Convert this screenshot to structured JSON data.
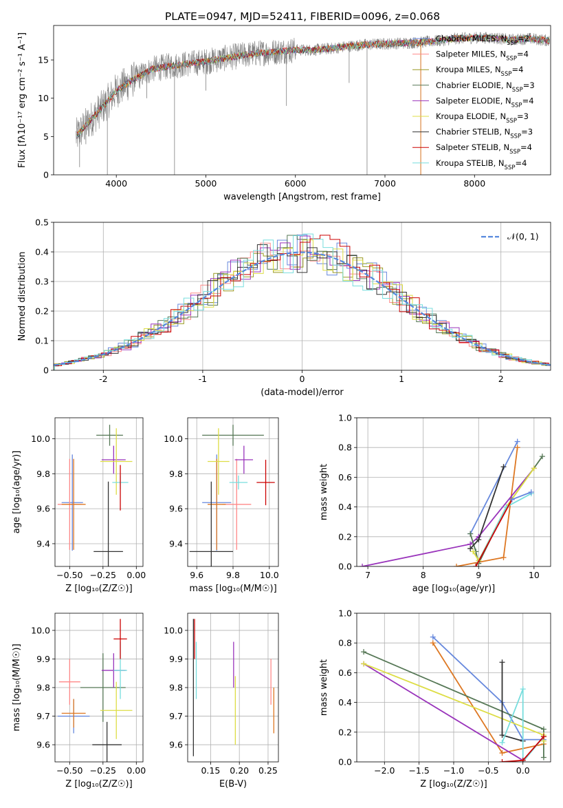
{
  "colors": {
    "C1": "#6688dd",
    "C2": "#ff8888",
    "C3": "#999922",
    "C4": "#557755",
    "C5": "#9933bb",
    "C6": "#dddd44",
    "C7": "#333333",
    "C8": "#cc0000",
    "C9": "#77dddd",
    "orange": "#dd7722",
    "spectrum": "#7f7f7f",
    "teal": "#66cccc"
  },
  "chart_data": [
    {
      "id": "p1",
      "type": "line",
      "title": "PLATE=0947, MJD=52411, FIBERID=0096, z=0.068",
      "xlabel": "wavelength [Angstrom, rest frame]",
      "ylabel": "Flux [fλ10⁻¹⁷ erg cm⁻² s⁻¹ A⁻¹]",
      "xlim": [
        3300,
        8850
      ],
      "ylim": [
        0,
        19.5
      ],
      "xticks": [
        4000,
        5000,
        6000,
        7000,
        8000
      ],
      "yticks": [
        0,
        5,
        10,
        15
      ],
      "grid": false,
      "legend_position": "right",
      "legend": [
        {
          "label": "Chabrier MILES, N",
          "sub": "SSP",
          "suffix": "=2",
          "color": "#6688dd"
        },
        {
          "label": "Salpeter MILES, N",
          "sub": "SSP",
          "suffix": "=4",
          "color": "#ff8888"
        },
        {
          "label": "Kroupa MILES, N",
          "sub": "SSP",
          "suffix": "=4",
          "color": "#999922"
        },
        {
          "label": "Chabrier ELODIE, N",
          "sub": "SSP",
          "suffix": "=3",
          "color": "#557755"
        },
        {
          "label": "Salpeter ELODIE, N",
          "sub": "SSP",
          "suffix": "=4",
          "color": "#9933bb"
        },
        {
          "label": "Kroupa ELODIE, N",
          "sub": "SSP",
          "suffix": "=3",
          "color": "#dddd44"
        },
        {
          "label": "Chabrier STELIB, N",
          "sub": "SSP",
          "suffix": "=3",
          "color": "#333333"
        },
        {
          "label": "Salpeter STELIB, N",
          "sub": "SSP",
          "suffix": "=4",
          "color": "#cc0000"
        },
        {
          "label": "Kroupa STELIB, N",
          "sub": "SSP",
          "suffix": "=4",
          "color": "#77dddd"
        }
      ],
      "continuum": {
        "x": [
          3550,
          3700,
          3900,
          4000,
          4200,
          4400,
          4600,
          4800,
          5000,
          5200,
          5400,
          5600,
          5800,
          6000,
          6200,
          6400,
          6600,
          6800,
          7000,
          7200,
          7400,
          7600,
          7800,
          8000,
          8200,
          8400,
          8600,
          8840
        ],
        "y": [
          5,
          7,
          9.5,
          11,
          12.5,
          13.8,
          14.2,
          14.5,
          14.8,
          15.2,
          15.6,
          15.9,
          16.1,
          16.3,
          16.3,
          16.5,
          16.8,
          17.0,
          17.1,
          17.2,
          17.3,
          17.5,
          17.8,
          17.9,
          17.9,
          17.6,
          17.8,
          17.5
        ]
      },
      "absorption_lines": [
        {
          "x": 3590,
          "y": 1
        },
        {
          "x": 3660,
          "y": 4
        },
        {
          "x": 3900,
          "y": 0
        },
        {
          "x": 4340,
          "y": 10
        },
        {
          "x": 4650,
          "y": 0
        },
        {
          "x": 5000,
          "y": 11
        },
        {
          "x": 5900,
          "y": 9
        },
        {
          "x": 6600,
          "y": 12
        },
        {
          "x": 6800,
          "y": 0
        },
        {
          "x": 7400,
          "y": 0
        }
      ]
    },
    {
      "id": "p2",
      "type": "histogram",
      "xlabel": "(data-model)/error",
      "ylabel": "Normed distribution",
      "xlim": [
        -2.5,
        2.5
      ],
      "ylim": [
        0,
        0.5
      ],
      "xticks": [
        -2,
        -1,
        0,
        1,
        2
      ],
      "yticks": [
        0.0,
        0.1,
        0.2,
        0.3,
        0.4,
        0.5
      ],
      "grid": true,
      "bin_width": 0.1,
      "legend": {
        "label": "𝒩(0, 1)",
        "color": "#5588dd",
        "style": "dashed",
        "position": "top-right"
      },
      "gaussian": {
        "mean": 0,
        "sigma": 1
      }
    },
    {
      "id": "p3",
      "type": "scatter",
      "xlabel": "Z [log₁₀(Z/Z☉)]",
      "ylabel": "age  [log₁₀(age/yr)]",
      "xlim": [
        -0.61,
        0.05
      ],
      "ylim": [
        9.27,
        10.12
      ],
      "xticks": [
        -0.5,
        -0.25,
        0.0
      ],
      "xticklabels": [
        "−0.50",
        "−0.25",
        "0.00"
      ],
      "yticks": [
        9.4,
        9.6,
        9.8,
        10.0
      ],
      "yticklabels": [
        "9.4",
        "9.6",
        "9.8",
        "10.0"
      ],
      "grid": true,
      "points": [
        {
          "x": -0.48,
          "y": 9.635,
          "ex": 0.08,
          "ey": 0.275,
          "color": "#6688dd"
        },
        {
          "x": -0.5,
          "y": 9.625,
          "ex": 0.09,
          "ey": 0.26,
          "color": "#ff8888"
        },
        {
          "x": -0.47,
          "y": 9.625,
          "ex": 0.09,
          "ey": 0.26,
          "color": "#dd7722"
        },
        {
          "x": -0.2,
          "y": 10.02,
          "ex": 0.1,
          "ey": 0.06,
          "color": "#557755"
        },
        {
          "x": -0.17,
          "y": 9.88,
          "ex": 0.09,
          "ey": 0.08,
          "color": "#9933bb"
        },
        {
          "x": -0.15,
          "y": 9.87,
          "ex": 0.12,
          "ey": 0.19,
          "color": "#dddd44"
        },
        {
          "x": -0.12,
          "y": 9.75,
          "ex": 0.06,
          "ey": 0.04,
          "color": "#77dddd"
        },
        {
          "x": -0.12,
          "y": 9.72,
          "ex": 0.0,
          "ey": 0.13,
          "color": "#cc0000"
        },
        {
          "x": -0.21,
          "y": 9.355,
          "ex": 0.11,
          "ey": 0.4,
          "color": "#333333"
        }
      ]
    },
    {
      "id": "p4",
      "type": "scatter",
      "xlabel": "mass [log₁₀(M/M☉)]",
      "ylabel": "",
      "xlim": [
        9.55,
        10.05
      ],
      "ylim": [
        9.27,
        10.12
      ],
      "xticks": [
        9.6,
        9.8,
        10.0
      ],
      "xticklabels": [
        "9.6",
        "9.8",
        "10.0"
      ],
      "yticks": [
        9.4,
        9.6,
        9.8,
        10.0
      ],
      "yticklabels": [
        "9.4",
        "9.6",
        "9.8",
        "10.0"
      ],
      "grid": true,
      "points": [
        {
          "x": 9.71,
          "y": 9.635,
          "ex": 0.08,
          "ey": 0.275,
          "color": "#6688dd"
        },
        {
          "x": 9.82,
          "y": 9.625,
          "ex": 0.08,
          "ey": 0.26,
          "color": "#ff8888"
        },
        {
          "x": 9.71,
          "y": 9.625,
          "ex": 0.05,
          "ey": 0.26,
          "color": "#dd7722"
        },
        {
          "x": 9.8,
          "y": 10.02,
          "ex": 0.17,
          "ey": 0.06,
          "color": "#557755"
        },
        {
          "x": 9.86,
          "y": 9.88,
          "ex": 0.05,
          "ey": 0.08,
          "color": "#9933bb"
        },
        {
          "x": 9.72,
          "y": 9.87,
          "ex": 0.06,
          "ey": 0.19,
          "color": "#dddd44"
        },
        {
          "x": 9.83,
          "y": 9.75,
          "ex": 0.05,
          "ey": 0.04,
          "color": "#77dddd"
        },
        {
          "x": 9.98,
          "y": 9.75,
          "ex": 0.05,
          "ey": 0.13,
          "color": "#cc0000"
        },
        {
          "x": 9.68,
          "y": 9.355,
          "ex": 0.12,
          "ey": 0.4,
          "color": "#333333"
        }
      ]
    },
    {
      "id": "p5",
      "type": "line",
      "xlabel": "age  [log₁₀(age/yr)]",
      "ylabel": "mass weight",
      "xlim": [
        6.8,
        10.3
      ],
      "ylim": [
        0,
        1.0
      ],
      "xticks": [
        7,
        8,
        9,
        10
      ],
      "xticklabels": [
        "7",
        "8",
        "9",
        "10"
      ],
      "yticks": [
        0.0,
        0.2,
        0.4,
        0.6,
        0.8,
        1.0
      ],
      "yticklabels": [
        "0.0",
        "0.2",
        "0.4",
        "0.6",
        "0.8",
        "1.0"
      ],
      "grid": true,
      "series": [
        {
          "color": "#6688dd",
          "x": [
            8.85,
            9.7
          ],
          "y": [
            0.22,
            0.84
          ]
        },
        {
          "color": "#dd7722",
          "x": [
            8.6,
            9.45,
            9.7
          ],
          "y": [
            0.0,
            0.06,
            0.8
          ]
        },
        {
          "color": "#9933bb",
          "x": [
            6.9,
            8.85,
            9.0,
            10.0
          ],
          "y": [
            0.0,
            0.15,
            0.2,
            0.66
          ]
        },
        {
          "color": "#557755",
          "x": [
            8.85,
            8.95,
            9.0,
            9.5,
            10.15
          ],
          "y": [
            0.22,
            0.1,
            0.02,
            0.4,
            0.74
          ]
        },
        {
          "color": "#dddd44",
          "x": [
            8.9,
            9.0,
            9.5,
            10.0
          ],
          "y": [
            0.1,
            0.04,
            0.4,
            0.66
          ]
        },
        {
          "color": "#333333",
          "x": [
            8.85,
            9.0,
            9.45
          ],
          "y": [
            0.12,
            0.18,
            0.67
          ]
        },
        {
          "color": "#77dddd",
          "x": [
            8.95,
            9.5,
            9.95
          ],
          "y": [
            0.0,
            0.4,
            0.49
          ]
        },
        {
          "color": "#cc0000",
          "x": [
            8.95,
            9.6
          ],
          "y": [
            0.0,
            0.45
          ]
        },
        {
          "color": "#6688dd",
          "x": [
            9.6,
            9.95
          ],
          "y": [
            0.45,
            0.5
          ]
        }
      ]
    },
    {
      "id": "p6",
      "type": "scatter",
      "xlabel": "Z [log₁₀(Z/Z☉)]",
      "ylabel": "mass [log₁₀(M/M☉)]",
      "xlim": [
        -0.61,
        0.05
      ],
      "ylim": [
        9.54,
        10.06
      ],
      "xticks": [
        -0.5,
        -0.25,
        0.0
      ],
      "xticklabels": [
        "−0.50",
        "−0.25",
        "0.00"
      ],
      "yticks": [
        9.6,
        9.7,
        9.8,
        9.9,
        10.0
      ],
      "yticklabels": [
        "9.6",
        "9.7",
        "9.8",
        "9.9",
        "10.0"
      ],
      "grid": true,
      "points": [
        {
          "x": -0.47,
          "y": 9.7,
          "ex": 0.12,
          "ey": 0.06,
          "color": "#6688dd"
        },
        {
          "x": -0.5,
          "y": 9.82,
          "ex": 0.08,
          "ey": 0.08,
          "color": "#ff8888"
        },
        {
          "x": -0.47,
          "y": 9.71,
          "ex": 0.09,
          "ey": 0.05,
          "color": "#dd7722"
        },
        {
          "x": -0.25,
          "y": 9.8,
          "ex": 0.17,
          "ey": 0.12,
          "color": "#557755"
        },
        {
          "x": -0.17,
          "y": 9.86,
          "ex": 0.09,
          "ey": 0.06,
          "color": "#9933bb"
        },
        {
          "x": -0.15,
          "y": 9.72,
          "ex": 0.12,
          "ey": 0.1,
          "color": "#dddd44"
        },
        {
          "x": -0.12,
          "y": 9.86,
          "ex": 0.05,
          "ey": 0.1,
          "color": "#77dddd"
        },
        {
          "x": -0.12,
          "y": 9.97,
          "ex": 0.05,
          "ey": 0.07,
          "color": "#cc0000"
        },
        {
          "x": -0.22,
          "y": 9.6,
          "ex": 0.11,
          "ey": 0.08,
          "color": "#333333"
        }
      ]
    },
    {
      "id": "p7",
      "type": "scatter",
      "xlabel": "E(B-V)",
      "ylabel": "",
      "xlim": [
        0.11,
        0.268
      ],
      "ylim": [
        9.54,
        10.06
      ],
      "xticks": [
        0.15,
        0.2,
        0.25
      ],
      "xticklabels": [
        "0.15",
        "0.20",
        "0.25"
      ],
      "yticks": [
        9.6,
        9.7,
        9.8,
        9.9,
        10.0
      ],
      "yticklabels": [
        "9.6",
        "9.7",
        "9.8",
        "9.9",
        "10.0"
      ],
      "grid": true,
      "points": [
        {
          "x": 0.12,
          "y": 9.8,
          "ex": 0,
          "ey": 0.24,
          "color": "#333333"
        },
        {
          "x": 0.122,
          "y": 9.97,
          "ex": 0,
          "ey": 0.07,
          "color": "#cc0000"
        },
        {
          "x": 0.125,
          "y": 9.86,
          "ex": 0,
          "ey": 0.1,
          "color": "#77dddd"
        },
        {
          "x": 0.19,
          "y": 9.88,
          "ex": 0,
          "ey": 0.08,
          "color": "#9933bb"
        },
        {
          "x": 0.193,
          "y": 9.72,
          "ex": 0,
          "ey": 0.12,
          "color": "#dddd44"
        },
        {
          "x": 0.255,
          "y": 9.82,
          "ex": 0,
          "ey": 0.08,
          "color": "#ff8888"
        },
        {
          "x": 0.26,
          "y": 9.72,
          "ex": 0,
          "ey": 0.08,
          "color": "#dd7722"
        }
      ]
    },
    {
      "id": "p8",
      "type": "line",
      "xlabel": "Z [log₁₀(Z/Z☉)]",
      "ylabel": "mass weight",
      "xlim": [
        -2.4,
        0.4
      ],
      "ylim": [
        0,
        1.0
      ],
      "xticks": [
        -2.0,
        -1.5,
        -1.0,
        -0.5,
        0.0
      ],
      "xticklabels": [
        "−2.0",
        "−1.5",
        "−1.0",
        "−0.5",
        "0.0"
      ],
      "yticks": [
        0.0,
        0.2,
        0.4,
        0.6,
        0.8,
        1.0
      ],
      "yticklabels": [
        "0.0",
        "0.2",
        "0.4",
        "0.6",
        "0.8",
        "1.0"
      ],
      "grid": true,
      "series": [
        {
          "color": "#6688dd",
          "x": [
            -1.3,
            -0.3,
            0.0,
            0.3
          ],
          "y": [
            0.84,
            0.4,
            0.15,
            0.15
          ]
        },
        {
          "color": "#dd7722",
          "x": [
            -1.3,
            -0.3,
            0.3
          ],
          "y": [
            0.8,
            0.06,
            0.12
          ]
        },
        {
          "color": "#557755",
          "x": [
            -2.3,
            0.3,
            0.3
          ],
          "y": [
            0.74,
            0.22,
            0.03
          ]
        },
        {
          "color": "#9933bb",
          "x": [
            -2.3,
            0.0,
            0.3
          ],
          "y": [
            0.66,
            0.01,
            0.17
          ]
        },
        {
          "color": "#dddd44",
          "x": [
            -2.3,
            0.3,
            0.3
          ],
          "y": [
            0.66,
            0.18,
            0.14
          ]
        },
        {
          "color": "#333333",
          "x": [
            -0.3,
            -0.3,
            0.0
          ],
          "y": [
            0.67,
            0.18,
            0.14
          ]
        },
        {
          "color": "#77dddd",
          "x": [
            -0.3,
            0.0,
            0.0,
            0.3
          ],
          "y": [
            0.13,
            0.49,
            0.0,
            0.17
          ]
        },
        {
          "color": "#cc0000",
          "x": [
            -0.3,
            0.0,
            0.3
          ],
          "y": [
            0.0,
            0.01,
            0.17
          ]
        }
      ]
    }
  ]
}
